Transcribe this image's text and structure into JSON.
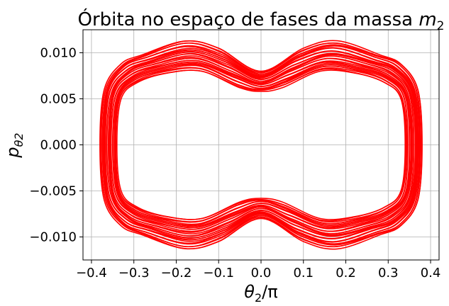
{
  "chart_data": {
    "type": "line",
    "title": "Órbita no espaço de fases da massa m₂",
    "title_parts": {
      "text": "Órbita no espaço de fases da massa ",
      "math_base": "m",
      "math_sub": "2"
    },
    "xlabel": "θ₂/π",
    "xlabel_parts": {
      "base": "θ",
      "sub": "2",
      "suffix": "/π"
    },
    "ylabel": "p_θ2",
    "ylabel_parts": {
      "base": "p",
      "sub": "θ2"
    },
    "xlim": [
      -0.42,
      0.42
    ],
    "ylim": [
      -0.0125,
      0.0125
    ],
    "xticks": [
      -0.4,
      -0.3,
      -0.2,
      -0.1,
      0.0,
      0.1,
      0.2,
      0.3,
      0.4
    ],
    "xtick_labels": [
      "−0.4",
      "−0.3",
      "−0.2",
      "−0.1",
      "0.0",
      "0.1",
      "0.2",
      "0.3",
      "0.4"
    ],
    "yticks": [
      0.01,
      0.005,
      0.0,
      -0.005,
      -0.01
    ],
    "ytick_labels": [
      "0.010",
      "0.005",
      "0.000",
      "−0.005",
      "−0.010"
    ],
    "grid": true,
    "series": [
      {
        "color": "#ff0000",
        "description_points_outer_upper": [
          [
            -0.38,
            0.0
          ],
          [
            -0.37,
            0.006
          ],
          [
            -0.33,
            0.0088
          ],
          [
            -0.28,
            0.0098
          ],
          [
            -0.18,
            0.0113
          ],
          [
            -0.1,
            0.0105
          ],
          [
            0.0,
            0.008
          ],
          [
            0.1,
            0.0105
          ],
          [
            0.18,
            0.0113
          ],
          [
            0.28,
            0.0098
          ],
          [
            0.33,
            0.0088
          ],
          [
            0.37,
            0.006
          ],
          [
            0.38,
            0.0
          ]
        ],
        "description_points_inner_upper": [
          [
            -0.34,
            0.0
          ],
          [
            -0.33,
            0.005
          ],
          [
            -0.29,
            0.0068
          ],
          [
            -0.22,
            0.0078
          ],
          [
            -0.14,
            0.008
          ],
          [
            -0.05,
            0.0062
          ],
          [
            0.0,
            0.0058
          ],
          [
            0.05,
            0.0062
          ],
          [
            0.14,
            0.008
          ],
          [
            0.22,
            0.0078
          ],
          [
            0.29,
            0.0068
          ],
          [
            0.33,
            0.005
          ],
          [
            0.34,
            0.0
          ]
        ]
      }
    ]
  }
}
